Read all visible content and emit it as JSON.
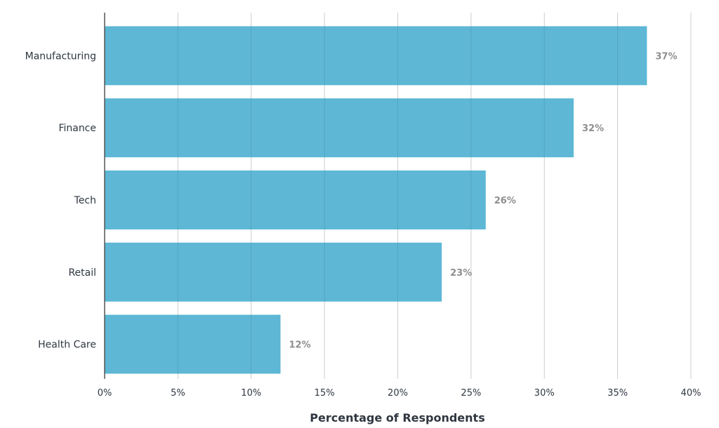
{
  "chart_data": {
    "type": "bar",
    "orientation": "horizontal",
    "categories": [
      "Manufacturing",
      "Finance",
      "Tech",
      "Retail",
      "Health Care"
    ],
    "values": [
      37,
      32,
      26,
      23,
      12
    ],
    "value_labels": [
      "37%",
      "32%",
      "26%",
      "23%",
      "12%"
    ],
    "title": "",
    "xlabel": "Percentage of Respondents",
    "ylabel": "",
    "xlim": [
      0,
      40
    ],
    "xticks": [
      0,
      5,
      10,
      15,
      20,
      25,
      30,
      35,
      40
    ],
    "xtick_labels": [
      "0%",
      "5%",
      "10%",
      "15%",
      "20%",
      "25%",
      "30%",
      "35%",
      "40%"
    ],
    "grid": "vertical",
    "bar_color": "#5db7d5",
    "value_label_color": "#8e8e8e"
  }
}
